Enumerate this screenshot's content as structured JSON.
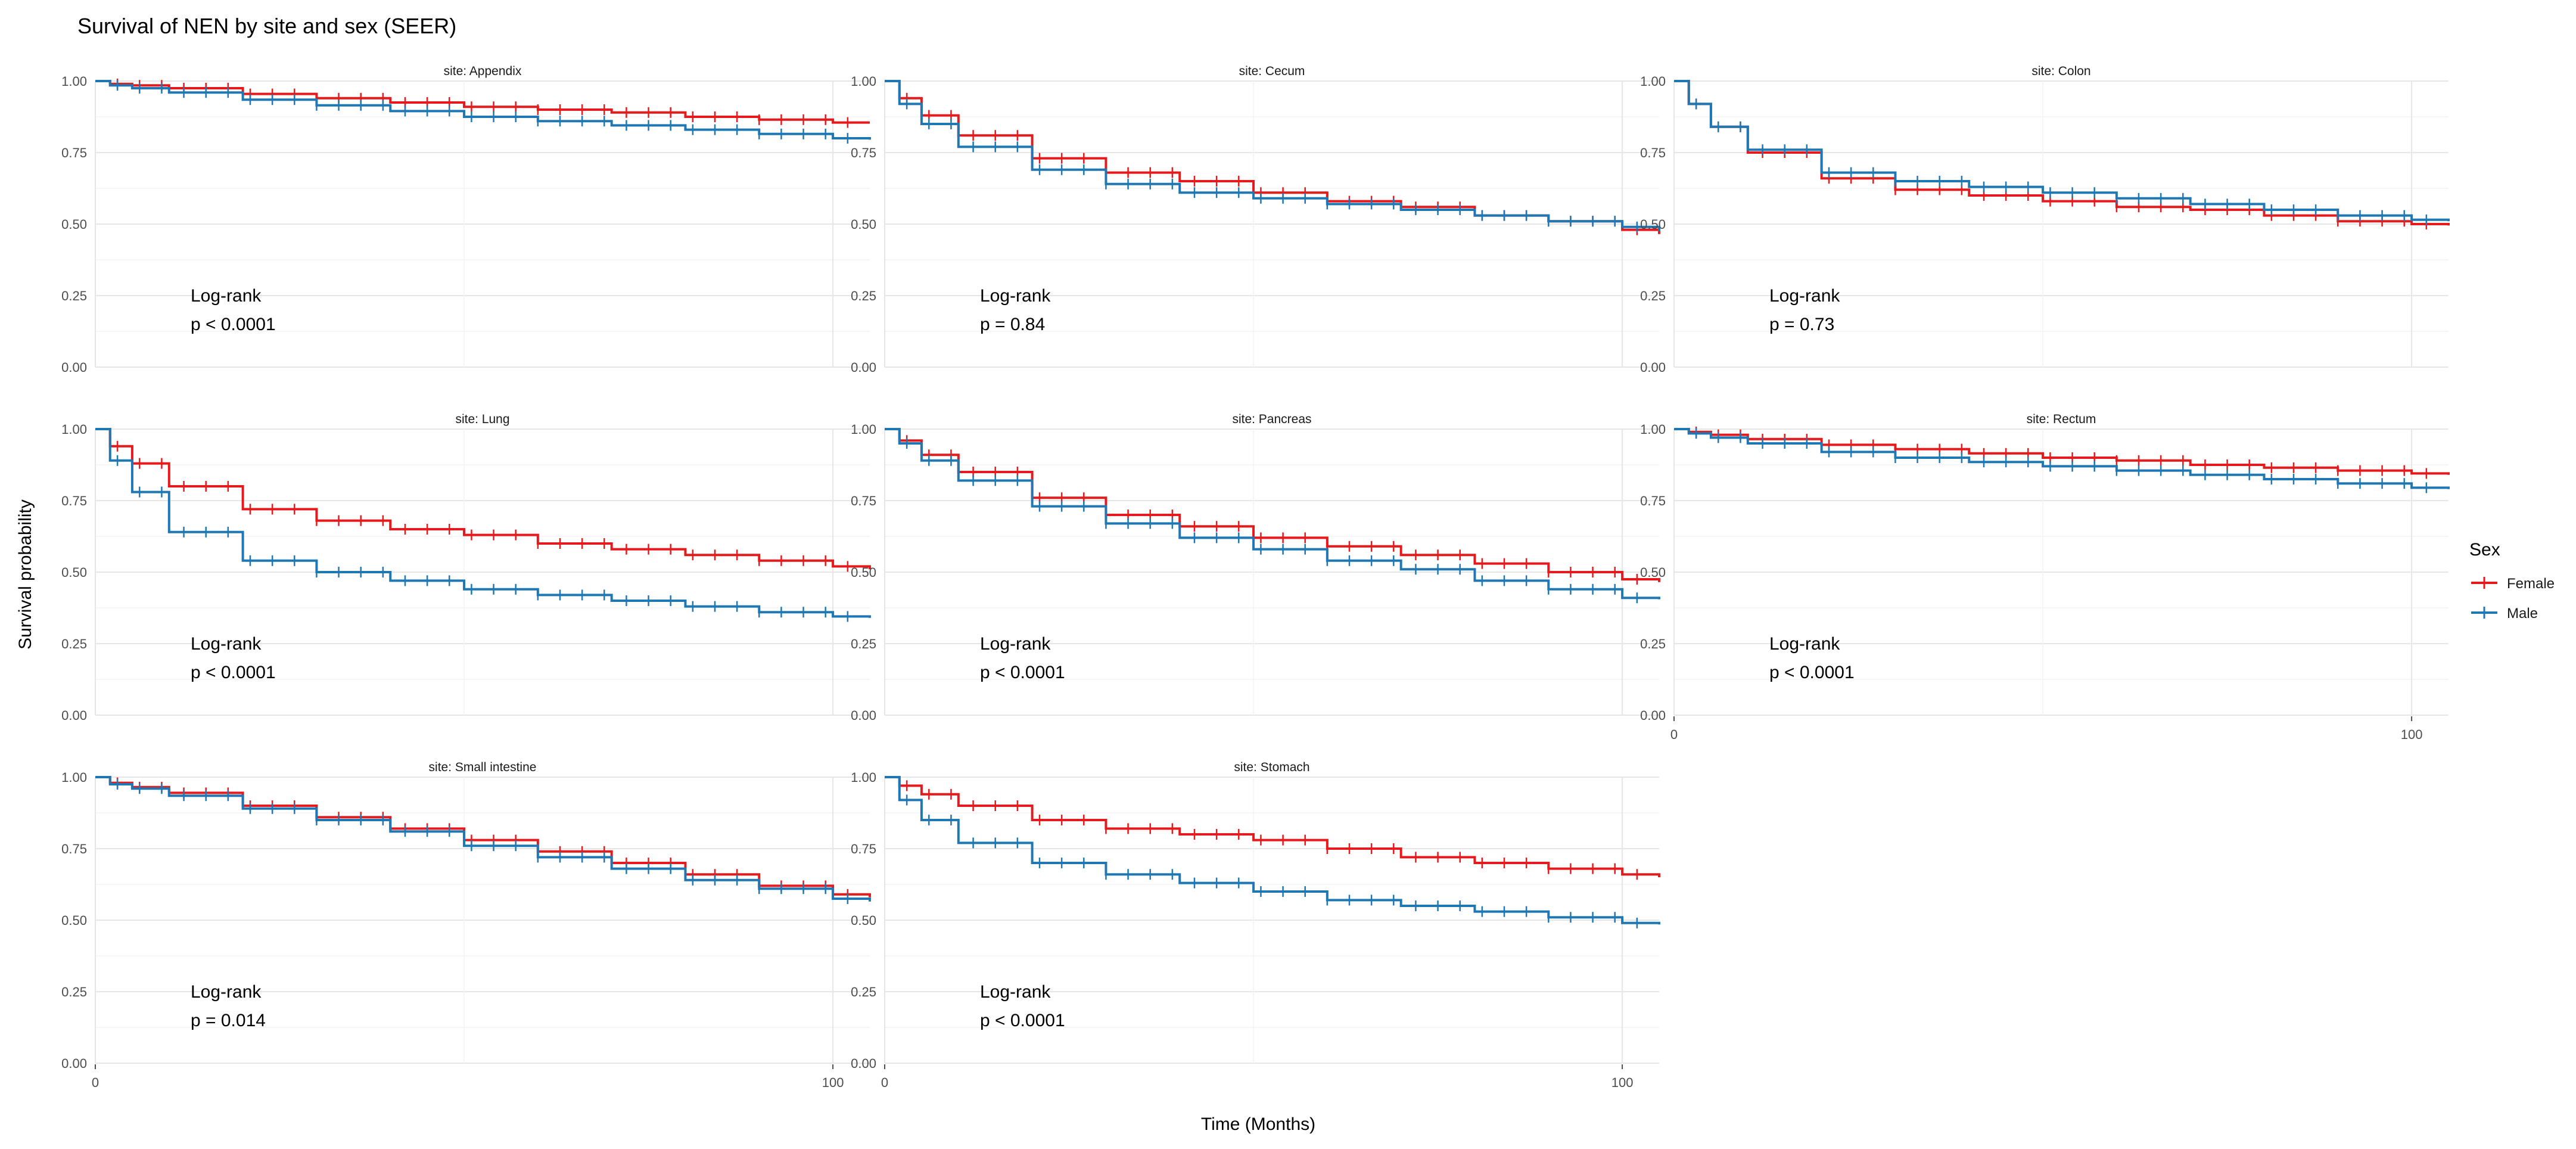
{
  "chart_data": {
    "type": "line",
    "title": "Survival of NEN by site and sex (SEER)",
    "xlabel": "Time (Months)",
    "ylabel": "Survival probability",
    "xlim": [
      0,
      105
    ],
    "ylim": [
      0,
      1
    ],
    "x_ticks": [
      0,
      100
    ],
    "y_ticks": [
      0.0,
      0.25,
      0.5,
      0.75,
      1.0
    ],
    "y_tick_labels": [
      "0.00",
      "0.25",
      "0.50",
      "0.75",
      "1.00"
    ],
    "legend": {
      "title": "Sex",
      "position": "right",
      "entries": [
        {
          "name": "Female",
          "color": "#e41a1c"
        },
        {
          "name": "Male",
          "color": "#1f78b4"
        }
      ]
    },
    "x": [
      0,
      2,
      5,
      10,
      20,
      30,
      40,
      50,
      60,
      70,
      80,
      90,
      100,
      105
    ],
    "panels": [
      {
        "strip": "site: Appendix",
        "test": "Log-rank",
        "p": "p < 0.0001",
        "series": [
          {
            "name": "Female",
            "values": [
              1.0,
              0.99,
              0.985,
              0.975,
              0.955,
              0.94,
              0.925,
              0.91,
              0.9,
              0.89,
              0.875,
              0.865,
              0.855,
              0.855
            ]
          },
          {
            "name": "Male",
            "values": [
              1.0,
              0.985,
              0.975,
              0.96,
              0.935,
              0.915,
              0.895,
              0.875,
              0.86,
              0.845,
              0.83,
              0.815,
              0.8,
              0.795
            ]
          }
        ]
      },
      {
        "strip": "site: Cecum",
        "test": "Log-rank",
        "p": "p = 0.84",
        "series": [
          {
            "name": "Female",
            "values": [
              1.0,
              0.94,
              0.88,
              0.81,
              0.73,
              0.68,
              0.65,
              0.61,
              0.58,
              0.56,
              0.53,
              0.51,
              0.48,
              0.465
            ]
          },
          {
            "name": "Male",
            "values": [
              1.0,
              0.92,
              0.85,
              0.77,
              0.69,
              0.64,
              0.61,
              0.59,
              0.57,
              0.55,
              0.53,
              0.51,
              0.49,
              0.475
            ]
          }
        ]
      },
      {
        "strip": "site: Colon",
        "test": "Log-rank",
        "p": "p = 0.73",
        "series": [
          {
            "name": "Female",
            "values": [
              1.0,
              0.92,
              0.84,
              0.75,
              0.66,
              0.62,
              0.6,
              0.58,
              0.56,
              0.55,
              0.53,
              0.51,
              0.5,
              0.495
            ]
          },
          {
            "name": "Male",
            "values": [
              1.0,
              0.92,
              0.84,
              0.76,
              0.68,
              0.65,
              0.63,
              0.61,
              0.59,
              0.57,
              0.55,
              0.53,
              0.515,
              0.51
            ]
          }
        ]
      },
      {
        "strip": "site: Lung",
        "test": "Log-rank",
        "p": "p < 0.0001",
        "series": [
          {
            "name": "Female",
            "values": [
              1.0,
              0.94,
              0.88,
              0.8,
              0.72,
              0.68,
              0.65,
              0.63,
              0.6,
              0.58,
              0.56,
              0.54,
              0.52,
              0.51
            ]
          },
          {
            "name": "Male",
            "values": [
              1.0,
              0.89,
              0.78,
              0.64,
              0.54,
              0.5,
              0.47,
              0.44,
              0.42,
              0.4,
              0.38,
              0.36,
              0.345,
              0.34
            ]
          }
        ]
      },
      {
        "strip": "site: Pancreas",
        "test": "Log-rank",
        "p": "p < 0.0001",
        "series": [
          {
            "name": "Female",
            "values": [
              1.0,
              0.96,
              0.91,
              0.85,
              0.76,
              0.7,
              0.66,
              0.62,
              0.59,
              0.56,
              0.53,
              0.5,
              0.475,
              0.465
            ]
          },
          {
            "name": "Male",
            "values": [
              1.0,
              0.95,
              0.89,
              0.82,
              0.73,
              0.67,
              0.62,
              0.58,
              0.54,
              0.51,
              0.47,
              0.44,
              0.41,
              0.405
            ]
          }
        ]
      },
      {
        "strip": "site: Rectum",
        "test": "Log-rank",
        "p": "p < 0.0001",
        "series": [
          {
            "name": "Female",
            "values": [
              1.0,
              0.99,
              0.98,
              0.965,
              0.945,
              0.93,
              0.915,
              0.9,
              0.89,
              0.875,
              0.865,
              0.855,
              0.845,
              0.84
            ]
          },
          {
            "name": "Male",
            "values": [
              1.0,
              0.985,
              0.97,
              0.95,
              0.92,
              0.9,
              0.885,
              0.87,
              0.855,
              0.84,
              0.825,
              0.81,
              0.795,
              0.79
            ]
          }
        ]
      },
      {
        "strip": "site: Small intestine",
        "test": "Log-rank",
        "p": "p = 0.014",
        "series": [
          {
            "name": "Female",
            "values": [
              1.0,
              0.98,
              0.965,
              0.945,
              0.9,
              0.86,
              0.82,
              0.78,
              0.74,
              0.7,
              0.66,
              0.62,
              0.59,
              0.58
            ]
          },
          {
            "name": "Male",
            "values": [
              1.0,
              0.975,
              0.96,
              0.935,
              0.89,
              0.85,
              0.81,
              0.76,
              0.72,
              0.68,
              0.64,
              0.61,
              0.575,
              0.565
            ]
          }
        ]
      },
      {
        "strip": "site: Stomach",
        "test": "Log-rank",
        "p": "p < 0.0001",
        "series": [
          {
            "name": "Female",
            "values": [
              1.0,
              0.97,
              0.94,
              0.9,
              0.85,
              0.82,
              0.8,
              0.78,
              0.75,
              0.72,
              0.7,
              0.68,
              0.66,
              0.65
            ]
          },
          {
            "name": "Male",
            "values": [
              1.0,
              0.92,
              0.85,
              0.77,
              0.7,
              0.66,
              0.63,
              0.6,
              0.57,
              0.55,
              0.53,
              0.51,
              0.49,
              0.485
            ]
          }
        ]
      }
    ]
  }
}
